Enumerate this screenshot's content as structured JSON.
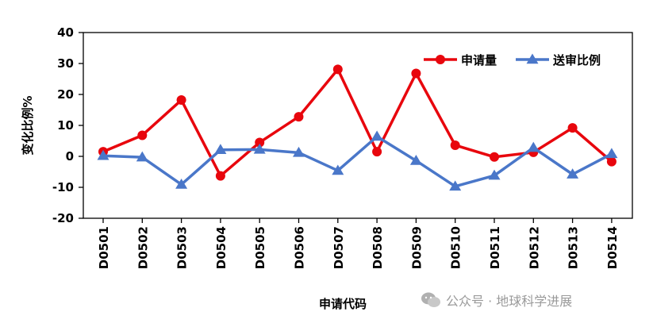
{
  "chart_data": {
    "type": "line",
    "categories": [
      "D0501",
      "D0502",
      "D0503",
      "D0504",
      "D0505",
      "D0506",
      "D0507",
      "D0508",
      "D0509",
      "D0510",
      "D0511",
      "D0512",
      "D0513",
      "D0514"
    ],
    "series": [
      {
        "name": "申请量",
        "color": "#e8060d",
        "marker": "circle",
        "values": [
          1.5,
          6.8,
          18.2,
          -6.3,
          4.5,
          12.8,
          28.1,
          1.5,
          26.8,
          3.6,
          -0.2,
          1.3,
          9.2,
          -1.7
        ]
      },
      {
        "name": "送审比例",
        "color": "#4a77c9",
        "marker": "triangle",
        "values": [
          0.2,
          -0.3,
          -9.1,
          2.1,
          2.2,
          1.2,
          -4.6,
          6.4,
          -1.4,
          -9.7,
          -6.2,
          2.8,
          -5.8,
          0.8
        ]
      }
    ],
    "xlabel": "申请代码",
    "ylabel": "变化比例%",
    "ylim": [
      -20,
      40
    ],
    "yticks": [
      -20,
      -10,
      0,
      10,
      20,
      30,
      40
    ],
    "grid": false,
    "legend_position": "top-right"
  },
  "watermark": {
    "text": "公众号 · 地球科学进展"
  }
}
